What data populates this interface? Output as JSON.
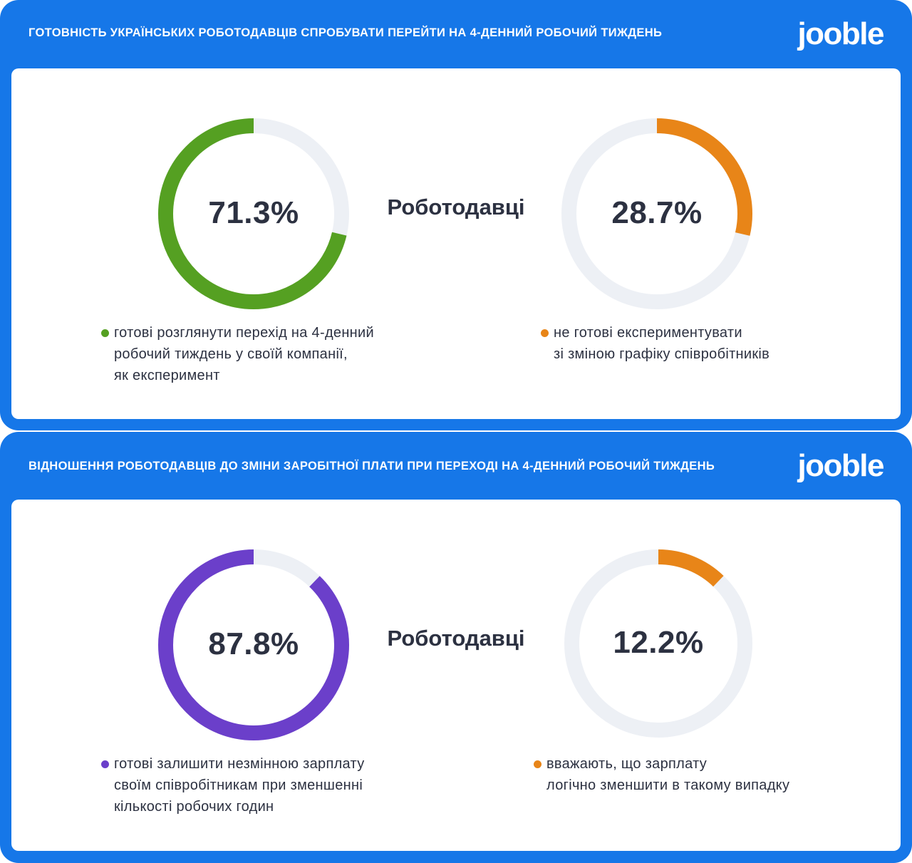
{
  "brand": "jooble",
  "colors": {
    "brand_blue": "#1677e8",
    "track": "#edf0f5",
    "green": "#55a022",
    "orange": "#e88518",
    "purple": "#6b3fca",
    "text": "#2c3141"
  },
  "panels": [
    {
      "title": "ГОТОВНІСТЬ УКРАЇНСЬКИХ РОБОТОДАВЦІВ СПРОБУВАТИ ПЕРЕЙТИ НА 4-ДЕННИЙ РОБОЧИЙ ТИЖДЕНЬ",
      "center_label": "Роботодавці",
      "left": {
        "percent_text": "71.3%",
        "legend_lines": [
          "готові розглянути перехід на 4-денний",
          "робочий тиждень у своїй компанії,",
          "як експеримент"
        ]
      },
      "right": {
        "percent_text": "28.7%",
        "legend_lines": [
          "не готові експериментувати",
          "зі зміною графіку співробітників"
        ]
      }
    },
    {
      "title": "ВІДНОШЕННЯ РОБОТОДАВЦІВ ДО ЗМІНИ ЗАРОБІТНОЇ ПЛАТИ ПРИ ПЕРЕХОДІ НА 4-ДЕННИЙ РОБОЧИЙ ТИЖДЕНЬ",
      "center_label": "Роботодавці",
      "left": {
        "percent_text": "87.8%",
        "legend_lines": [
          "готові залишити незмінною зарплату",
          "своїм співробітникам при зменшенні",
          "кількості робочих годин"
        ]
      },
      "right": {
        "percent_text": "12.2%",
        "legend_lines": [
          "вважають, що зарплату",
          "логічно зменшити в такому випадку"
        ]
      }
    }
  ],
  "chart_data": [
    {
      "type": "pie",
      "title": "ГОТОВНІСТЬ УКРАЇНСЬКИХ РОБОТОДАВЦІВ СПРОБУВАТИ ПЕРЕЙТИ НА 4-ДЕННИЙ РОБОЧИЙ ТИЖДЕНЬ",
      "style": "two single-value donuts",
      "categories": [
        "готові розглянути перехід на 4-денний робочий тиждень у своїй компанії, як експеримент",
        "не готові експериментувати зі зміною графіку співробітників"
      ],
      "values": [
        71.3,
        28.7
      ],
      "colors": [
        "#55a022",
        "#e88518"
      ]
    },
    {
      "type": "pie",
      "title": "ВІДНОШЕННЯ РОБОТОДАВЦІВ ДО ЗМІНИ ЗАРОБІТНОЇ ПЛАТИ ПРИ ПЕРЕХОДІ НА 4-ДЕННИЙ РОБОЧИЙ ТИЖДЕНЬ",
      "style": "two single-value donuts",
      "categories": [
        "готові залишити незмінною зарплату своїм співробітникам при зменшенні кількості робочих годин",
        "вважають, що зарплату логічно зменшити в такому випадку"
      ],
      "values": [
        87.8,
        12.2
      ],
      "colors": [
        "#6b3fca",
        "#e88518"
      ]
    }
  ]
}
